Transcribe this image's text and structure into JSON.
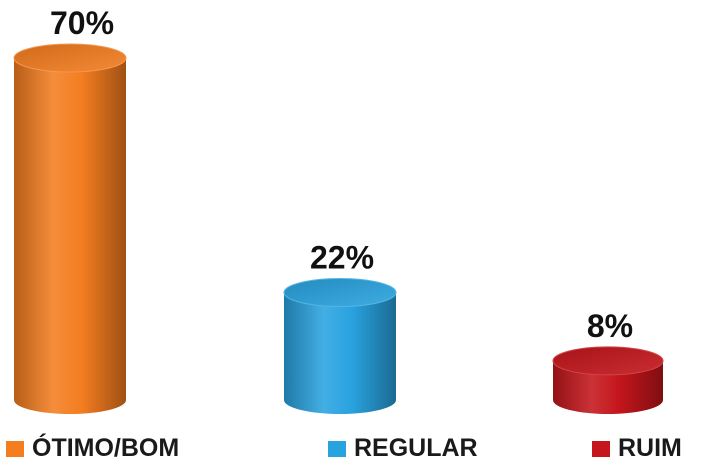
{
  "chart_data": {
    "type": "bar",
    "style": "3d-cylinder",
    "categories": [
      "ÓTIMO/BOM",
      "REGULAR",
      "RUIM"
    ],
    "values": [
      70,
      22,
      8
    ],
    "value_labels": [
      "70%",
      "22%",
      "8%"
    ],
    "colors": [
      "#f47d20",
      "#29a3e0",
      "#c4161c"
    ],
    "title": "",
    "xlabel": "",
    "ylabel": "",
    "ylim": [
      0,
      70
    ],
    "grid": false,
    "legend_position": "bottom"
  }
}
